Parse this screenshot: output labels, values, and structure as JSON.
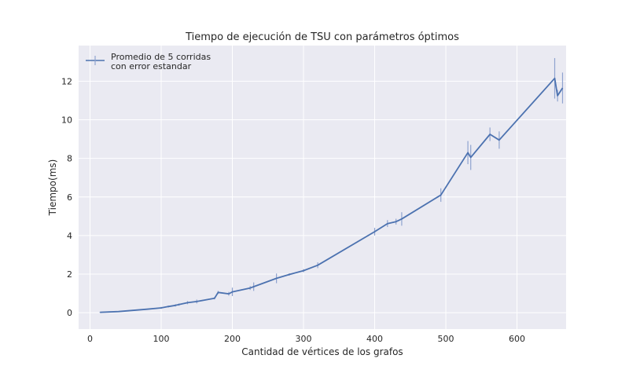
{
  "chart_data": {
    "type": "line",
    "title": "Tiempo de ejecución de TSU con parámetros óptimos",
    "xlabel": "Cantidad de vértices de los grafos",
    "ylabel": "Tiempo(ms)",
    "xlim": [
      -16,
      669
    ],
    "ylim": [
      -0.85,
      13.85
    ],
    "xticks": [
      0,
      100,
      200,
      300,
      400,
      500,
      600
    ],
    "yticks": [
      0,
      2,
      4,
      6,
      8,
      10,
      12
    ],
    "grid": true,
    "legend_position": "top-left",
    "colors": {
      "line": "#4c72b0",
      "errorbar": "#8fa3cf",
      "background": "#eaeaf2",
      "grid": "#ffffff"
    },
    "series": [
      {
        "name": "Promedio de 5 corridas\ncon error estandar",
        "x": [
          14,
          40,
          60,
          80,
          100,
          110,
          120,
          125,
          137,
          150,
          175,
          180,
          195,
          200,
          225,
          230,
          262,
          280,
          300,
          320,
          400,
          418,
          430,
          438,
          493,
          531,
          535,
          562,
          575,
          653,
          657,
          664
        ],
        "y": [
          0.02,
          0.06,
          0.12,
          0.18,
          0.25,
          0.32,
          0.38,
          0.42,
          0.52,
          0.58,
          0.75,
          1.05,
          0.98,
          1.08,
          1.28,
          1.35,
          1.78,
          1.98,
          2.18,
          2.46,
          4.2,
          4.62,
          4.72,
          4.86,
          6.1,
          8.3,
          8.05,
          9.25,
          8.95,
          12.15,
          11.25,
          11.65
        ],
        "err": [
          0.02,
          0.02,
          0.03,
          0.03,
          0.05,
          0.05,
          0.06,
          0.06,
          0.08,
          0.1,
          0.06,
          0.08,
          0.1,
          0.22,
          0.1,
          0.22,
          0.25,
          0.06,
          0.08,
          0.15,
          0.2,
          0.18,
          0.15,
          0.35,
          0.35,
          0.6,
          0.65,
          0.35,
          0.45,
          1.05,
          0.3,
          0.8
        ]
      }
    ]
  }
}
